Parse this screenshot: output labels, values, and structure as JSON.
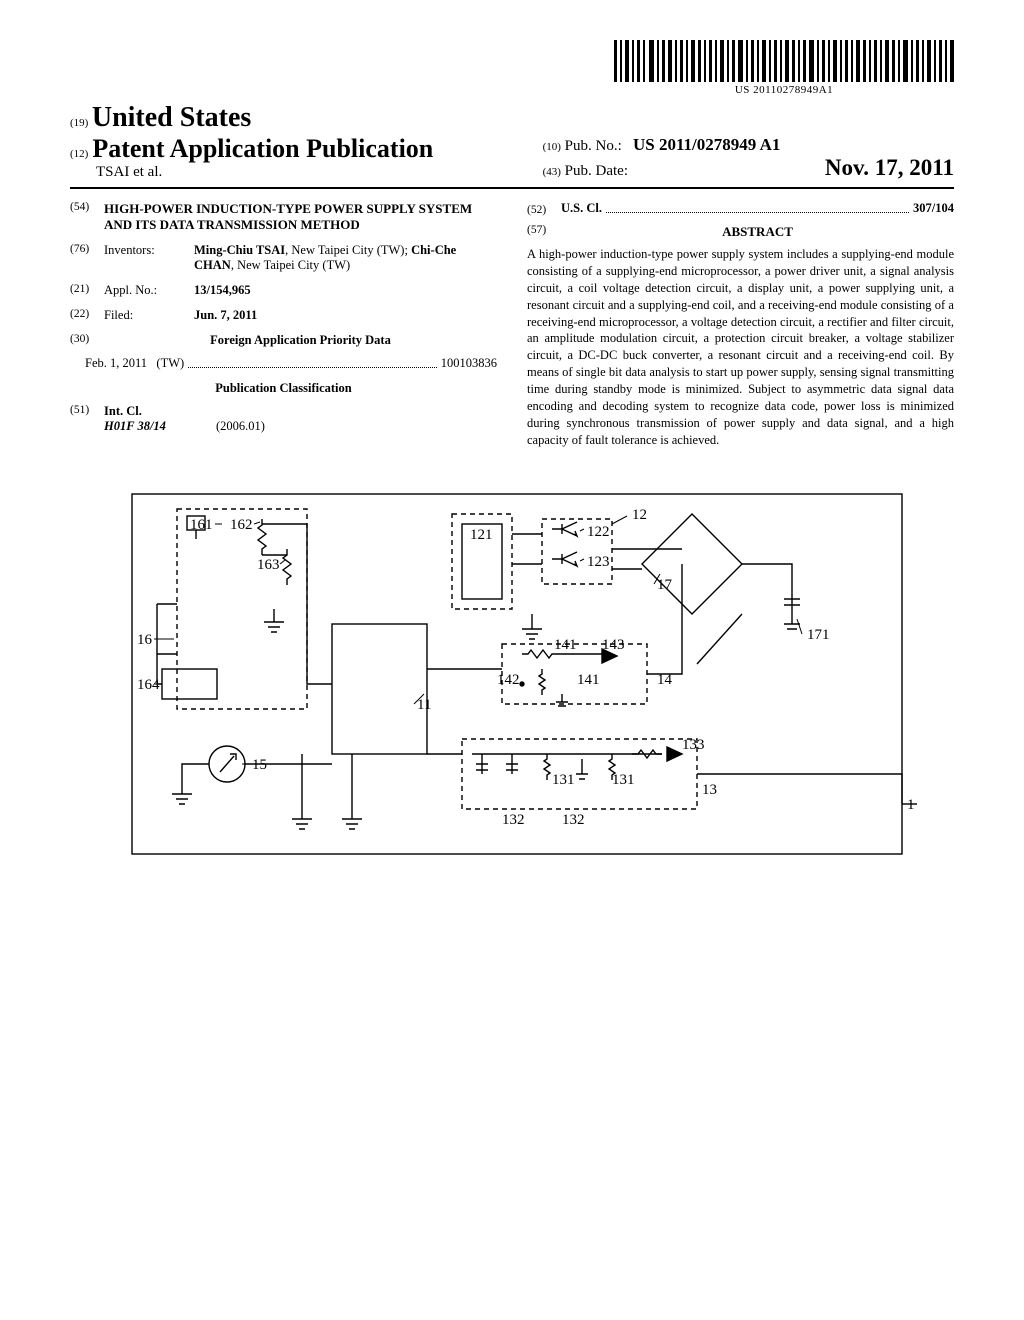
{
  "barcode": {
    "text": "US 20110278949A1"
  },
  "header": {
    "country_num": "19",
    "country": "United States",
    "pubtype_num": "12",
    "pubtype": "Patent Application Publication",
    "authors": "TSAI et al.",
    "pubno_num": "10",
    "pubno_label": "Pub. No.:",
    "pubno": "US 2011/0278949 A1",
    "pubdate_num": "43",
    "pubdate_label": "Pub. Date:",
    "pubdate": "Nov. 17, 2011"
  },
  "left": {
    "title_num": "54",
    "title": "HIGH-POWER INDUCTION-TYPE POWER SUPPLY SYSTEM AND ITS DATA TRANSMISSION METHOD",
    "inventors_num": "76",
    "inventors_label": "Inventors:",
    "inventors_value_html": "<b>Ming-Chiu TSAI</b>, New Taipei City (TW); <b>Chi-Che CHAN</b>, New Taipei City (TW)",
    "applno_num": "21",
    "applno_label": "Appl. No.:",
    "applno_value": "13/154,965",
    "filed_num": "22",
    "filed_label": "Filed:",
    "filed_value": "Jun. 7, 2011",
    "foreign_num": "30",
    "foreign_heading": "Foreign Application Priority Data",
    "foreign_date": "Feb. 1, 2011",
    "foreign_country": "(TW)",
    "foreign_appno": "100103836",
    "pubclass_heading": "Publication Classification",
    "intcl_num": "51",
    "intcl_label": "Int. Cl.",
    "intcl_code": "H01F 38/14",
    "intcl_edition": "(2006.01)"
  },
  "right": {
    "uscl_num": "52",
    "uscl_label": "U.S. Cl.",
    "uscl_value": "307/104",
    "abstract_num": "57",
    "abstract_heading": "ABSTRACT",
    "abstract_body": "A high-power induction-type power supply system includes a supplying-end module consisting of a supplying-end microprocessor, a power driver unit, a signal analysis circuit, a coil voltage detection circuit, a display unit, a power supplying unit, a resonant circuit and a supplying-end coil, and a receiving-end module consisting of a receiving-end microprocessor, a voltage detection circuit, a rectifier and filter circuit, an amplitude modulation circuit, a protection circuit breaker, a voltage stabilizer circuit, a DC-DC buck converter, a resonant circuit and a receiving-end coil. By means of single bit data analysis to start up power supply, sensing signal transmitting time during standby mode is minimized. Subject to asymmetric data signal data encoding and decoding system to recognize data code, power loss is minimized during synchronous transmission of power supply and data signal, and a high capacity of fault tolerance is achieved."
  },
  "figure": {
    "labels": [
      "161",
      "162",
      "163",
      "16",
      "164",
      "15",
      "11",
      "121",
      "122",
      "123",
      "12",
      "17",
      "141",
      "143",
      "142",
      "141",
      "14",
      "133",
      "131",
      "131",
      "132",
      "132",
      "13",
      "171",
      "1"
    ],
    "stroke": "#000000",
    "stroke_width": 1.4,
    "dash": "5,4"
  }
}
